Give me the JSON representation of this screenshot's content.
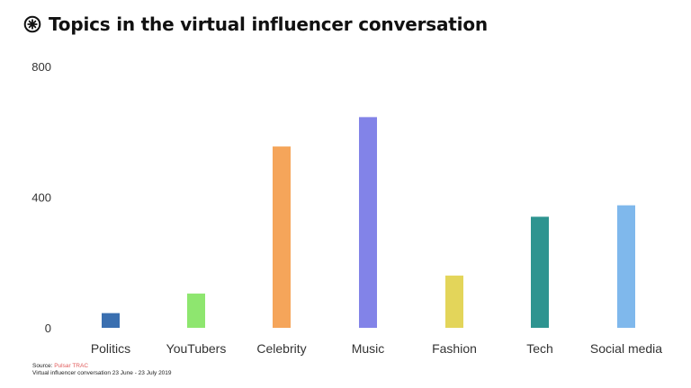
{
  "title": "Topics in the virtual influencer conversation",
  "logo_icon": "pulsar-logo-icon",
  "source": {
    "prefix": "Source:",
    "name": "Pulsar TRAC",
    "name_color": "#e05a5a",
    "note": "Virtual influencer conversation 23 June - 23 July 2019"
  },
  "chart_data": {
    "type": "bar",
    "title": "Topics in the virtual influencer conversation",
    "xlabel": "",
    "ylabel": "",
    "ylim": [
      0,
      800
    ],
    "yticks": [
      0,
      400,
      800
    ],
    "grid": false,
    "legend": "none",
    "categories": [
      "Politics",
      "YouTubers",
      "Celebrity",
      "Music",
      "Fashion",
      "Tech",
      "Social media"
    ],
    "values": [
      45,
      105,
      555,
      645,
      160,
      340,
      375
    ],
    "colors": [
      "#3a6fb0",
      "#8ee66f",
      "#f5a55a",
      "#8283e8",
      "#e3d55a",
      "#2e9490",
      "#7fb8ec"
    ]
  }
}
